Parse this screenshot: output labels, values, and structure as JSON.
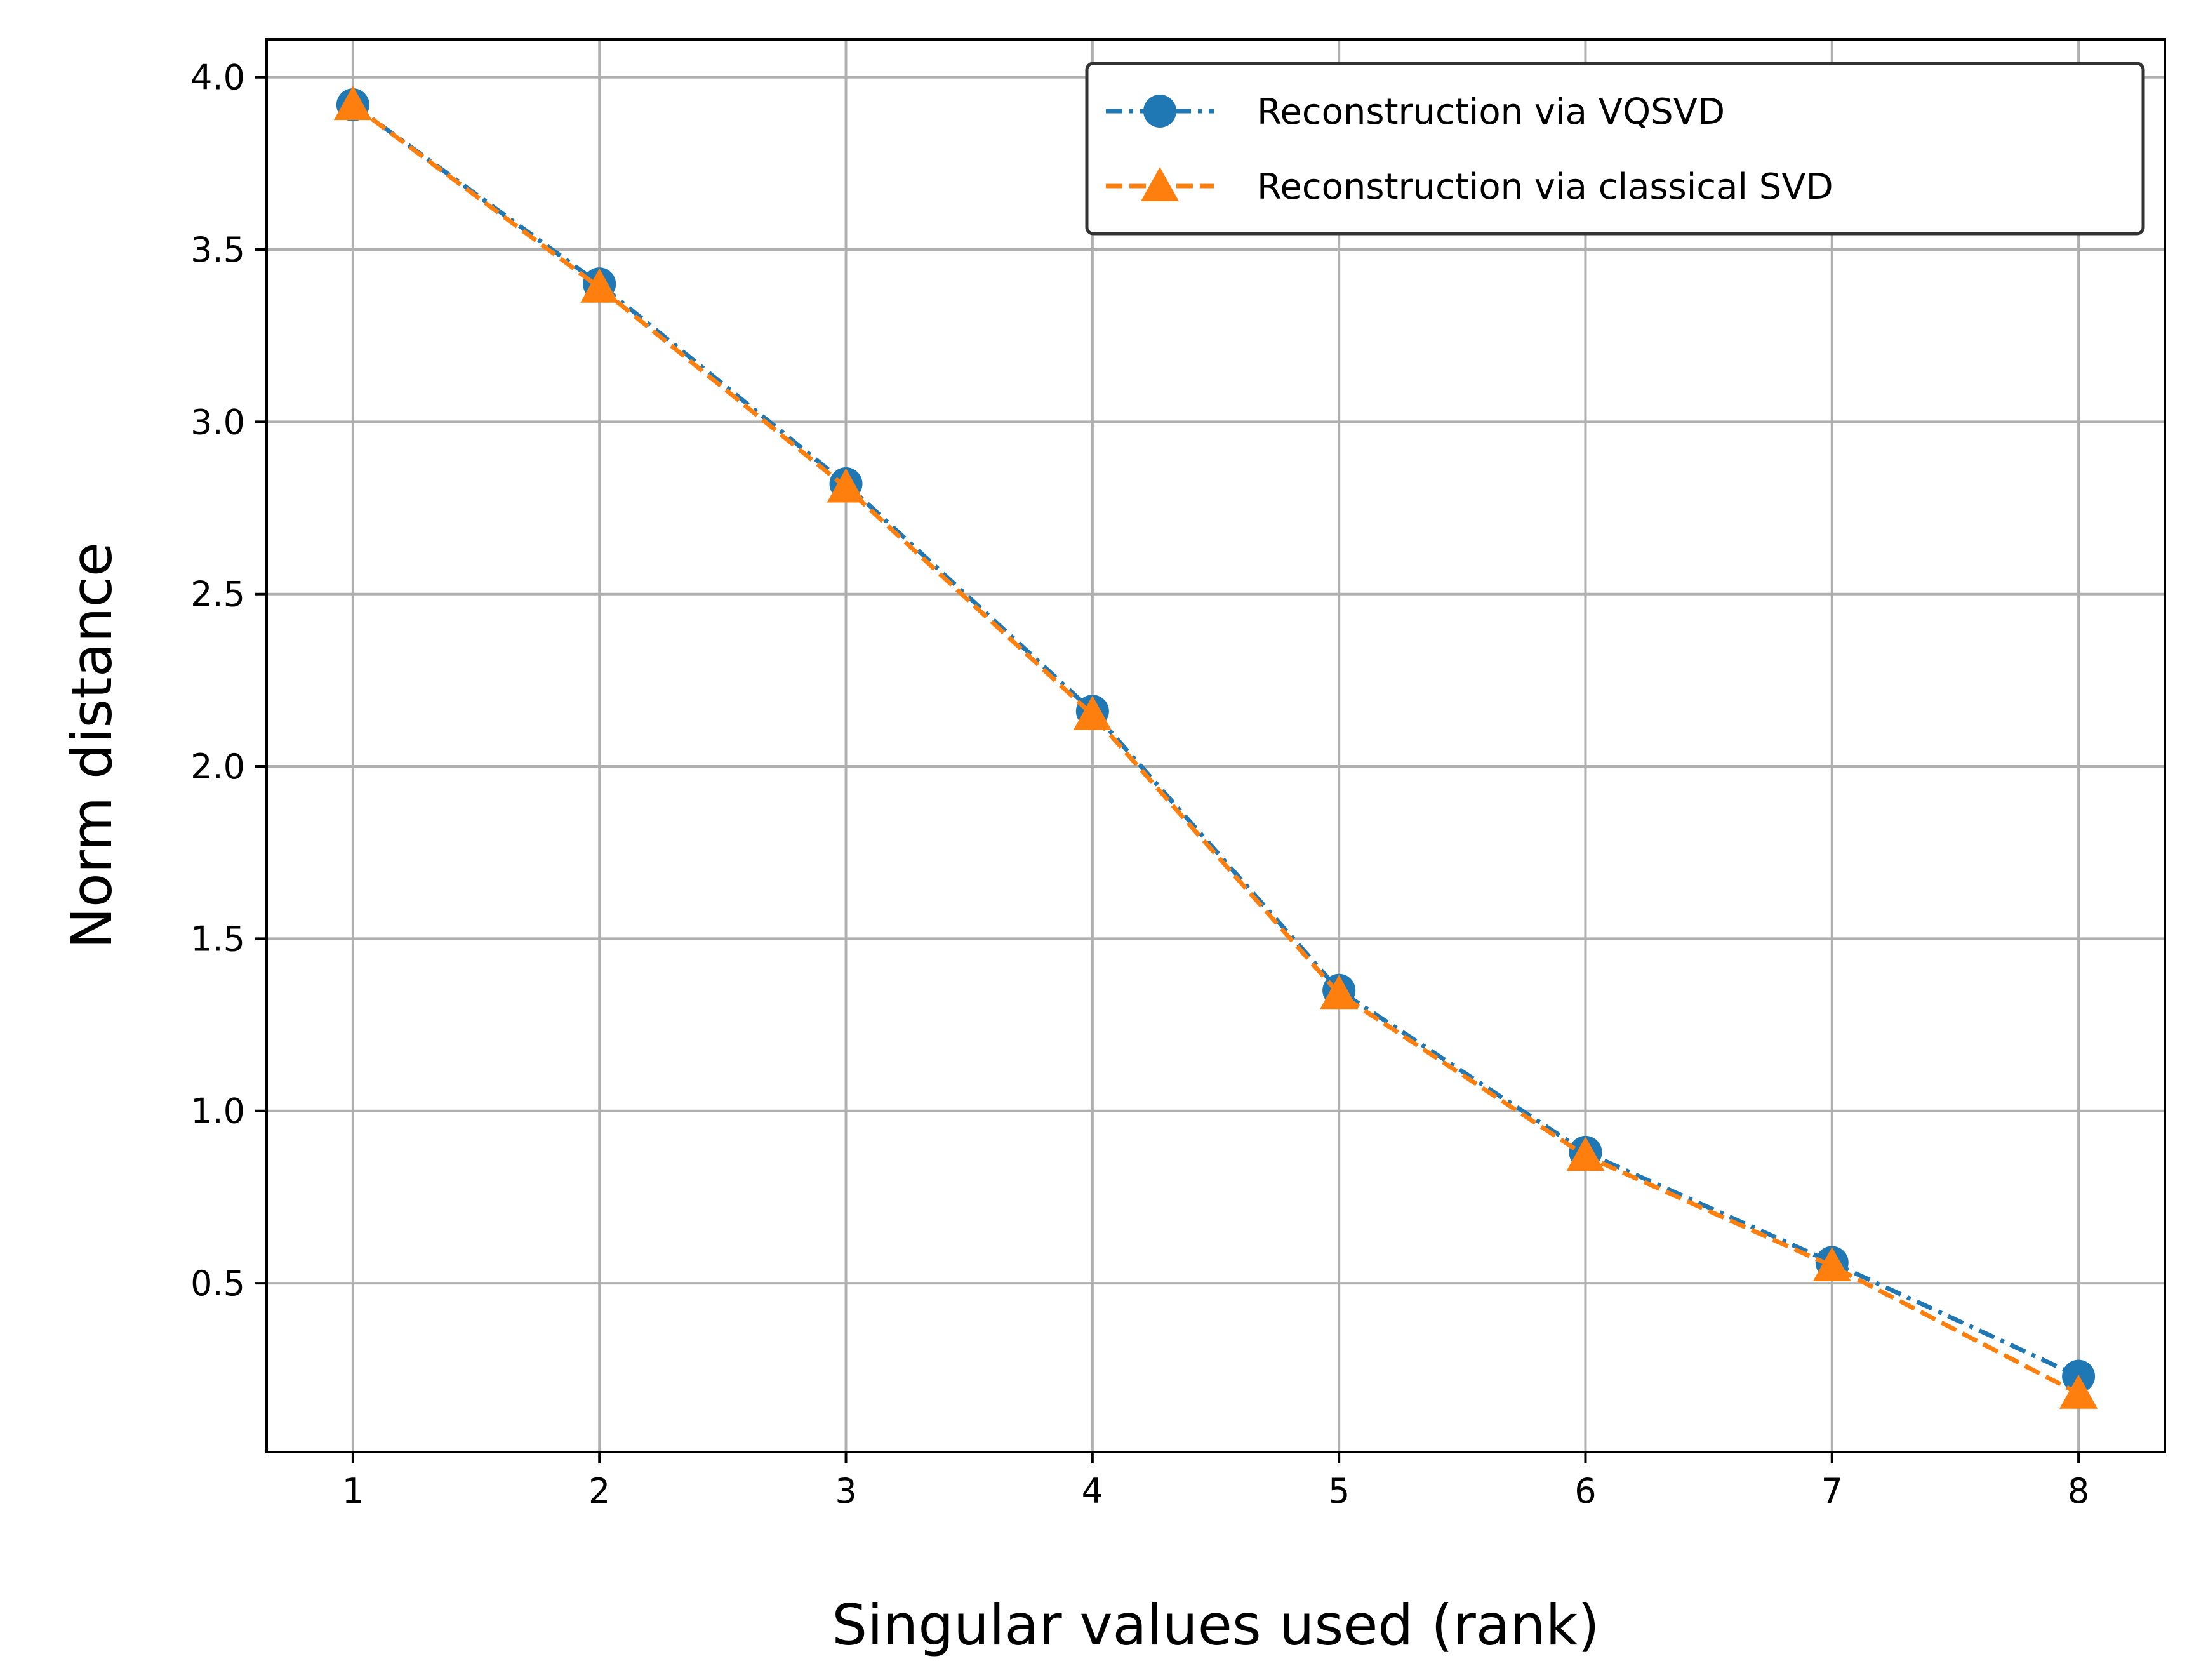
{
  "chart_data": {
    "type": "line",
    "xlabel": "Singular values used (rank)",
    "ylabel": "Norm distance",
    "x": [
      1,
      2,
      3,
      4,
      5,
      6,
      7,
      8
    ],
    "xlim": [
      0.65,
      8.35
    ],
    "ylim": [
      0.01,
      4.11
    ],
    "xticks": [
      1,
      2,
      3,
      4,
      5,
      6,
      7,
      8
    ],
    "yticks": [
      0.5,
      1.0,
      1.5,
      2.0,
      2.5,
      3.0,
      3.5,
      4.0
    ],
    "ytick_labels": [
      "0.5",
      "1.0",
      "1.5",
      "2.0",
      "2.5",
      "3.0",
      "3.5",
      "4.0"
    ],
    "grid": true,
    "legend_position": "top-right",
    "series": [
      {
        "name": "Reconstruction via VQSVD",
        "values": [
          3.92,
          3.4,
          2.82,
          2.16,
          1.35,
          0.88,
          0.56,
          0.23
        ],
        "color": "#1f77b4",
        "marker": "circle",
        "linestyle": "dash-dot"
      },
      {
        "name": "Reconstruction via classical SVD",
        "values": [
          3.92,
          3.39,
          2.81,
          2.15,
          1.34,
          0.87,
          0.55,
          0.18
        ],
        "color": "#ff7f0e",
        "marker": "triangle",
        "linestyle": "dashed"
      }
    ]
  }
}
